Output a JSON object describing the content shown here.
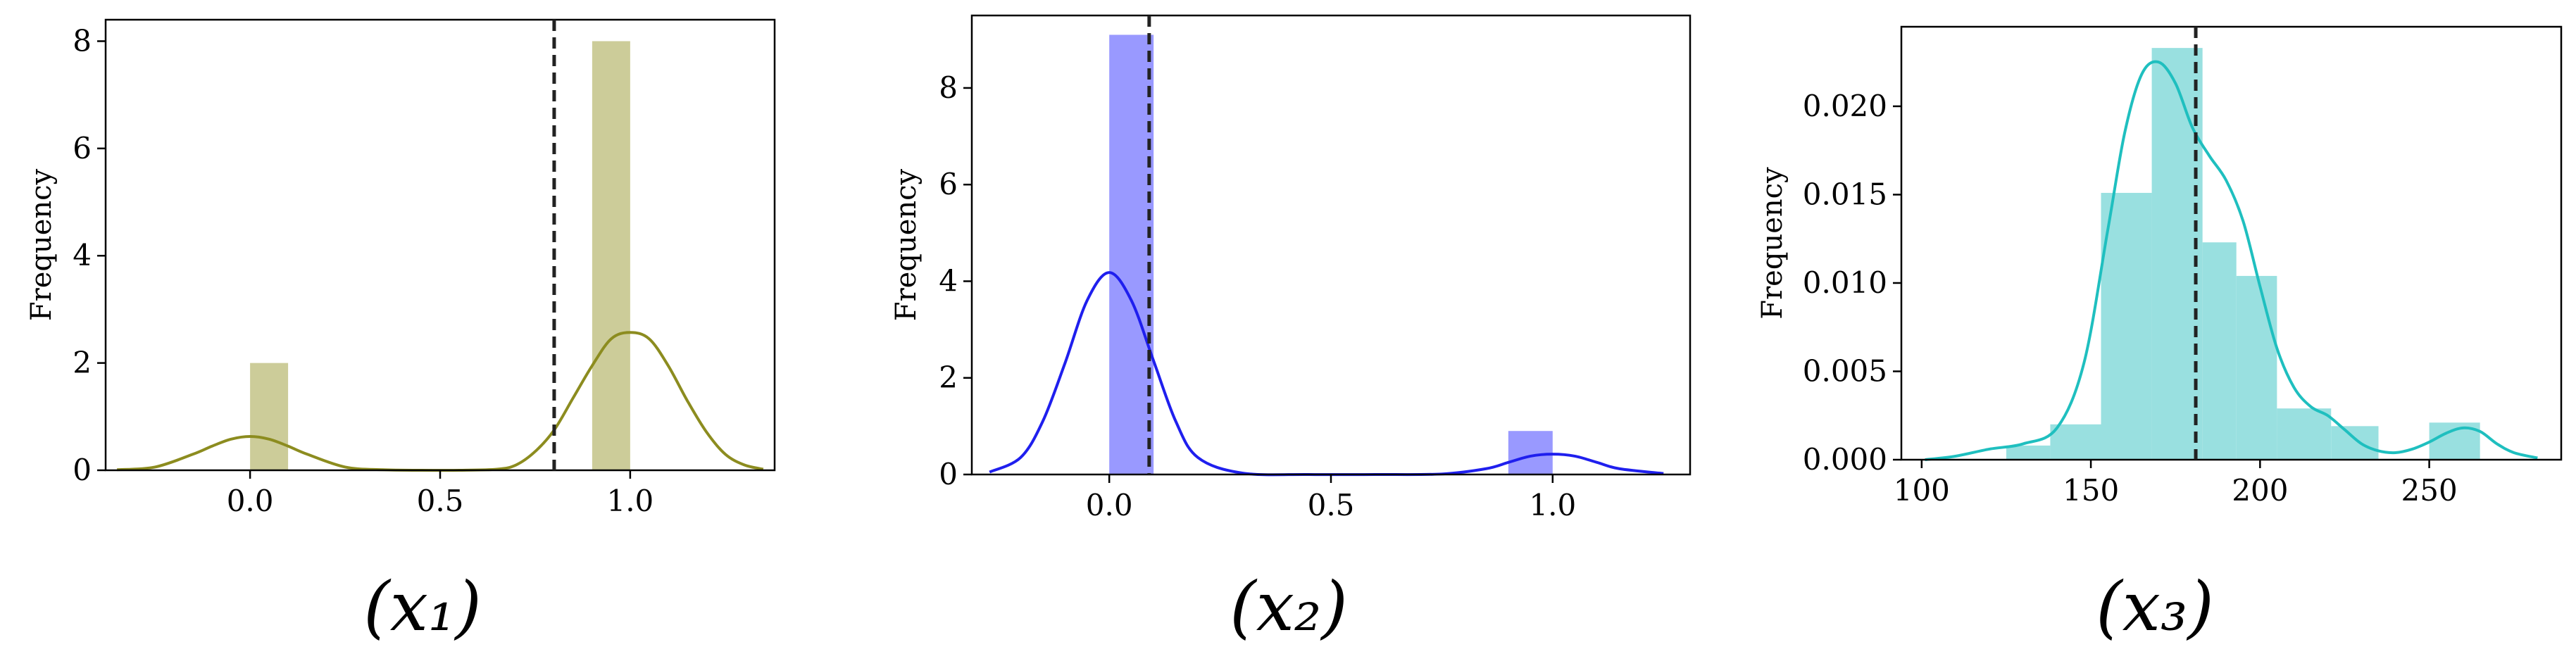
{
  "chart_data": [
    {
      "type": "bar",
      "panel_label": "(x₁)",
      "ylabel": "Frequency",
      "xlim": [
        -0.38,
        1.38
      ],
      "ylim": [
        0,
        8.4
      ],
      "xticks": [
        "0.0",
        "0.5",
        "1.0"
      ],
      "xtick_values": [
        0.0,
        0.5,
        1.0
      ],
      "yticks": [
        "0",
        "2",
        "4",
        "6",
        "8"
      ],
      "ytick_values": [
        0,
        2,
        4,
        6,
        8
      ],
      "bars": [
        {
          "x0": 0.0,
          "x1": 0.1,
          "value": 2
        },
        {
          "x0": 0.9,
          "x1": 1.0,
          "value": 8
        }
      ],
      "kde": {
        "x": [
          -0.35,
          -0.25,
          -0.15,
          -0.1,
          -0.05,
          0.0,
          0.05,
          0.1,
          0.15,
          0.25,
          0.35,
          0.45,
          0.55,
          0.65,
          0.7,
          0.75,
          0.8,
          0.85,
          0.9,
          0.95,
          1.0,
          1.05,
          1.1,
          1.15,
          1.2,
          1.25,
          1.3,
          1.35
        ],
        "y": [
          0.01,
          0.06,
          0.3,
          0.45,
          0.58,
          0.63,
          0.58,
          0.45,
          0.3,
          0.06,
          0.01,
          0.0,
          0.0,
          0.02,
          0.1,
          0.35,
          0.75,
          1.35,
          1.95,
          2.45,
          2.57,
          2.45,
          1.95,
          1.3,
          0.72,
          0.3,
          0.1,
          0.02
        ]
      },
      "vline": 0.8,
      "bar_color": "#cccc99",
      "kde_color": "#8c8c1f"
    },
    {
      "type": "bar",
      "panel_label": "(x₂)",
      "ylabel": "Frequency",
      "xlim": [
        -0.31,
        1.31
      ],
      "ylim": [
        0,
        9.5
      ],
      "xticks": [
        "0.0",
        "0.5",
        "1.0"
      ],
      "xtick_values": [
        0.0,
        0.5,
        1.0
      ],
      "yticks": [
        "0",
        "2",
        "4",
        "6",
        "8"
      ],
      "ytick_values": [
        0,
        2,
        4,
        6,
        8
      ],
      "bars": [
        {
          "x0": 0.0,
          "x1": 0.1,
          "value": 9.1
        },
        {
          "x0": 0.9,
          "x1": 1.0,
          "value": 0.9
        }
      ],
      "kde": {
        "x": [
          -0.27,
          -0.2,
          -0.15,
          -0.1,
          -0.05,
          0.0,
          0.05,
          0.1,
          0.15,
          0.2,
          0.3,
          0.45,
          0.6,
          0.75,
          0.85,
          0.9,
          0.95,
          1.0,
          1.05,
          1.1,
          1.15,
          1.25
        ],
        "y": [
          0.05,
          0.35,
          1.1,
          2.3,
          3.6,
          4.18,
          3.6,
          2.35,
          1.1,
          0.35,
          0.03,
          0.0,
          0.0,
          0.01,
          0.12,
          0.25,
          0.38,
          0.42,
          0.38,
          0.25,
          0.12,
          0.02
        ]
      },
      "vline": 0.09,
      "bar_color": "#9999ff",
      "kde_color": "#1f1fee"
    },
    {
      "type": "bar",
      "panel_label": "(x₃)",
      "ylabel": "Frequency",
      "xlim": [
        94,
        289
      ],
      "ylim": [
        0,
        0.0245
      ],
      "xticks": [
        "100",
        "150",
        "200",
        "250"
      ],
      "xtick_values": [
        100,
        150,
        200,
        250
      ],
      "yticks": [
        "0.000",
        "0.005",
        "0.010",
        "0.015",
        "0.020"
      ],
      "ytick_values": [
        0,
        0.005,
        0.01,
        0.015,
        0.02
      ],
      "bars": [
        {
          "x0": 125,
          "x1": 138,
          "value": 0.0008
        },
        {
          "x0": 138,
          "x1": 153,
          "value": 0.002
        },
        {
          "x0": 153,
          "x1": 168,
          "value": 0.0151
        },
        {
          "x0": 168,
          "x1": 183,
          "value": 0.0233
        },
        {
          "x0": 183,
          "x1": 193,
          "value": 0.0123
        },
        {
          "x0": 193,
          "x1": 205,
          "value": 0.0104
        },
        {
          "x0": 205,
          "x1": 221,
          "value": 0.0029
        },
        {
          "x0": 221,
          "x1": 235,
          "value": 0.0019
        },
        {
          "x0": 235,
          "x1": 250,
          "value": 0.0
        },
        {
          "x0": 250,
          "x1": 265,
          "value": 0.0021
        }
      ],
      "kde": {
        "x": [
          101,
          110,
          120,
          130,
          140,
          148,
          155,
          160,
          165,
          170,
          175,
          180,
          185,
          190,
          195,
          200,
          205,
          210,
          215,
          220,
          225,
          230,
          235,
          240,
          245,
          250,
          255,
          260,
          265,
          270,
          275,
          282
        ],
        "y": [
          0.0,
          0.0002,
          0.0006,
          0.0009,
          0.0018,
          0.0055,
          0.013,
          0.0185,
          0.0218,
          0.0225,
          0.0213,
          0.0188,
          0.0172,
          0.0158,
          0.0135,
          0.0098,
          0.0063,
          0.0041,
          0.003,
          0.0025,
          0.0017,
          0.0009,
          0.0005,
          0.0004,
          0.0006,
          0.001,
          0.0015,
          0.0018,
          0.0016,
          0.0009,
          0.0004,
          0.0001
        ]
      },
      "vline": 181,
      "bar_color": "#99e0e0",
      "kde_color": "#1fbfbf"
    }
  ]
}
